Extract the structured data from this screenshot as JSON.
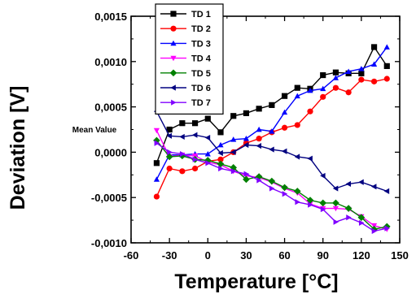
{
  "chart_data": {
    "type": "line",
    "xlabel": "Temperature [°C]",
    "ylabel": "Deviation [V]",
    "xlim": [
      -60,
      150
    ],
    "ylim": [
      -0.001,
      0.0015
    ],
    "xticks": [
      -60,
      -30,
      0,
      30,
      60,
      90,
      120,
      150
    ],
    "xtick_labels": [
      "-60",
      "-30",
      "0",
      "30",
      "60",
      "90",
      "120",
      "150"
    ],
    "yticks": [
      -0.001,
      -0.0005,
      0,
      0.0005,
      0.001,
      0.0015
    ],
    "ytick_labels": [
      "-0,0010",
      "-0,0005",
      "0,0000",
      "0,0005",
      "0,0010",
      "0,0015"
    ],
    "grid": false,
    "legend_position": "top-center",
    "annotation": "Mean Value",
    "x": [
      -40,
      -30,
      -20,
      -10,
      0,
      10,
      20,
      30,
      40,
      50,
      60,
      70,
      80,
      90,
      100,
      110,
      120,
      130,
      140
    ],
    "series": [
      {
        "name": "TD 1",
        "color": "#000000",
        "marker": "square",
        "values": [
          -0.00012,
          0.00025,
          0.00032,
          0.00032,
          0.00037,
          0.00022,
          0.0004,
          0.00043,
          0.00048,
          0.00052,
          0.00062,
          0.00071,
          0.0007,
          0.00085,
          0.00088,
          0.00087,
          0.00087,
          0.00116,
          0.00095
        ]
      },
      {
        "name": "TD 2",
        "color": "#ff0000",
        "marker": "circle",
        "values": [
          -0.00049,
          -0.00018,
          -0.00021,
          -0.00018,
          -0.0001,
          -8e-05,
          0.0,
          0.0001,
          0.00015,
          0.00022,
          0.00027,
          0.0003,
          0.00045,
          0.00061,
          0.00071,
          0.00066,
          0.0008,
          0.00078,
          0.00081
        ]
      },
      {
        "name": "TD 3",
        "color": "#0000ff",
        "marker": "triangle-up",
        "values": [
          -0.0003,
          -3e-05,
          -3e-05,
          -2e-05,
          -2e-05,
          8e-05,
          0.00014,
          0.00015,
          0.00025,
          0.00023,
          0.00044,
          0.00062,
          0.00068,
          0.0007,
          0.00082,
          0.00089,
          0.00092,
          0.00097,
          0.00116
        ]
      },
      {
        "name": "TD 4",
        "color": "#ff00ff",
        "marker": "triangle-down",
        "values": [
          0.00024,
          -5e-05,
          -3e-05,
          -4e-05,
          -0.00011,
          -0.00014,
          -0.00021,
          -0.00026,
          -0.00028,
          -0.00033,
          -0.0004,
          -0.00045,
          -0.00057,
          -0.00062,
          -0.00062,
          -0.00063,
          -0.00071,
          -0.00081,
          -0.00085
        ]
      },
      {
        "name": "TD 5",
        "color": "#008000",
        "marker": "diamond",
        "values": [
          0.00013,
          -5e-05,
          -4e-05,
          -8e-05,
          -9e-05,
          -0.00013,
          -0.00017,
          -0.0003,
          -0.00027,
          -0.00032,
          -0.00039,
          -0.00043,
          -0.00053,
          -0.00056,
          -0.00056,
          -0.00062,
          -0.00072,
          -0.00085,
          -0.00082
        ]
      },
      {
        "name": "TD 6",
        "color": "#000080",
        "marker": "triangle-left",
        "values": [
          0.00045,
          0.00018,
          0.00017,
          0.00019,
          0.00016,
          -1e-05,
          0.0,
          8e-05,
          7e-05,
          3e-05,
          1e-05,
          -5e-05,
          -7e-05,
          -0.00026,
          -0.0004,
          -0.00035,
          -0.00033,
          -0.00038,
          -0.00043
        ]
      },
      {
        "name": "TD 7",
        "color": "#8000ff",
        "marker": "triangle-right",
        "values": [
          0.0001,
          0.0,
          -2e-05,
          -8e-05,
          -0.00012,
          -0.00018,
          -0.00021,
          -0.00024,
          -0.00031,
          -0.0004,
          -0.00046,
          -0.00055,
          -0.00058,
          -0.00063,
          -0.00077,
          -0.00072,
          -0.00078,
          -0.00087,
          -0.00084
        ]
      }
    ]
  }
}
